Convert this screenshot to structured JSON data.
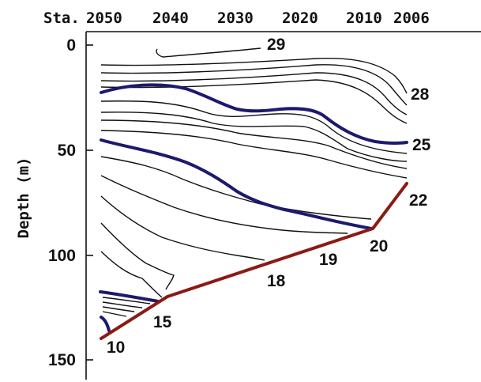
{
  "chart_data": {
    "type": "contour",
    "xlabel": "Sta.",
    "ylabel": "Depth (m)",
    "x_ticks": [
      "2050",
      "2040",
      "2030",
      "2020",
      "2010",
      "2006"
    ],
    "y_ticks": [
      "0",
      "50",
      "100",
      "150"
    ],
    "contour_labels": [
      "29",
      "28",
      "25",
      "22",
      "20",
      "19",
      "18",
      "15",
      "10"
    ],
    "bold_contours": [
      "25",
      "20"
    ]
  },
  "colors": {
    "thin_contour": "#111111",
    "bold_contour": "#1b1a6e",
    "seafloor": "#8b1a14"
  }
}
